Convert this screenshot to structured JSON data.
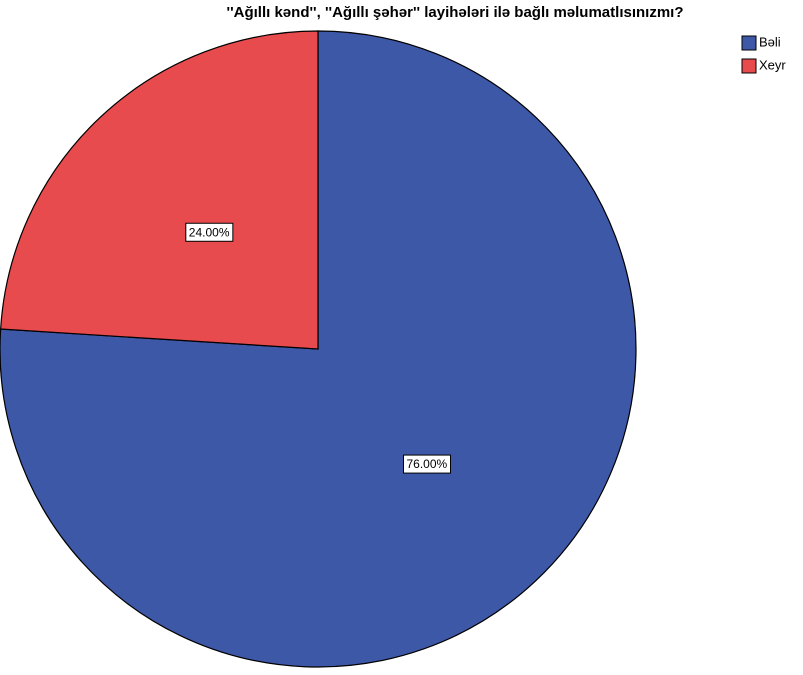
{
  "chart_data": {
    "type": "pie",
    "title": "''Ağıllı kənd'', ''Ağıllı şəhər'' layihələri ilə bağlı məlumatlısınızmı?",
    "categories": [
      "Bəli",
      "Xeyr"
    ],
    "values": [
      76,
      24
    ],
    "value_labels": [
      "76.00%",
      "24.00%"
    ],
    "colors": [
      "#3e58a8",
      "#e84b4d"
    ],
    "legend": "upper right"
  }
}
